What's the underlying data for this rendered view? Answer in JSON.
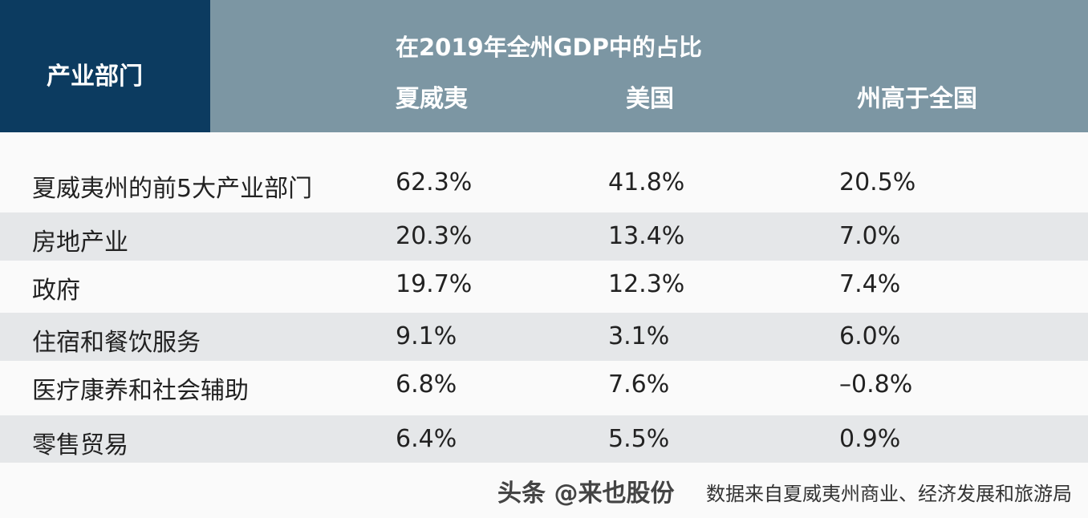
{
  "chart_data": {
    "type": "table",
    "header": {
      "row_label_header": "产业部门",
      "group_title": "在2019年全州GDP中的占比",
      "columns": [
        "夏威夷",
        "美国",
        "州高于全国"
      ]
    },
    "rows": [
      {
        "label": "夏威夷州的前5大产业部门",
        "values": [
          "62.3%",
          "41.8%",
          "20.5%"
        ]
      },
      {
        "label": "房地产业",
        "values": [
          "20.3%",
          "13.4%",
          "7.0%"
        ]
      },
      {
        "label": "政府",
        "values": [
          "19.7%",
          "12.3%",
          "7.4%"
        ]
      },
      {
        "label": "住宿和餐饮服务",
        "values": [
          "9.1%",
          "3.1%",
          "6.0%"
        ]
      },
      {
        "label": "医疗康养和社会辅助",
        "values": [
          "6.8%",
          "7.6%",
          "–0.8%"
        ]
      },
      {
        "label": "零售贸易",
        "values": [
          "6.4%",
          "5.5%",
          "0.9%"
        ]
      }
    ],
    "source": "数据来自夏威夷州商业、经济发展和旅游局",
    "watermark": "头条 @来也股份"
  },
  "colors": {
    "header_dark": "#0c3b60",
    "header_light": "#7c96a3",
    "row_alt": "#e5e7e9"
  }
}
